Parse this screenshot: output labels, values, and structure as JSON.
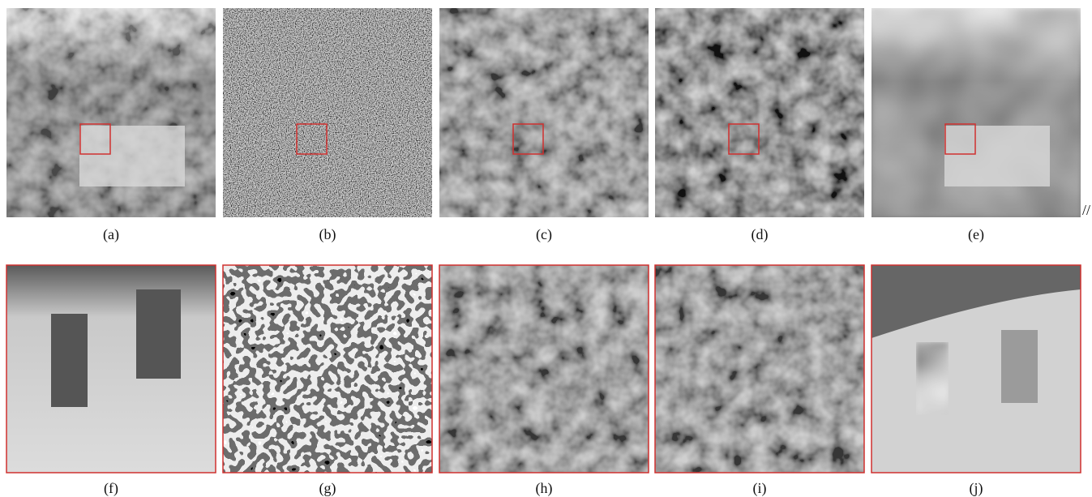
{
  "figure": {
    "top_captions": [
      "(a)",
      "(b)",
      "(c)",
      "(d)",
      "(e)"
    ],
    "bottom_captions": [
      "(f)",
      "(g)",
      "(h)",
      "(i)",
      "(j)"
    ],
    "mark": "//"
  }
}
